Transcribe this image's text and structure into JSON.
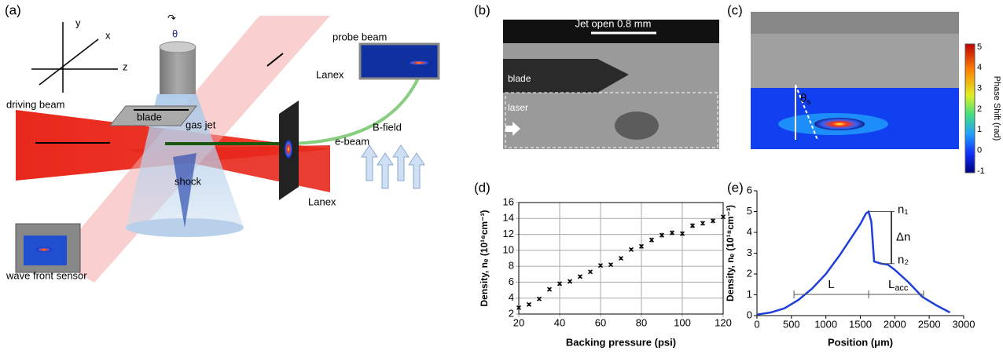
{
  "panels": {
    "a": {
      "label": "(a)",
      "axis_y": "y",
      "axis_x": "x",
      "axis_z": "z",
      "theta": "θ",
      "probe_beam": "probe beam",
      "driving_beam": "driving beam",
      "blade": "blade",
      "gas_jet": "gas jet",
      "lanex_top": "Lanex",
      "lanex": "Lanex",
      "b_field": "B-field",
      "e_beam": "e-beam",
      "shock": "shock",
      "sensor": "wave front sensor"
    },
    "b": {
      "label": "(b)",
      "scale": "Jet open 0.8 mm",
      "blade": "blade",
      "laser": "laser"
    },
    "c": {
      "label": "(c)",
      "theta": "θ",
      "theta_sub": "s",
      "colorbar_title": "Phase Shift (rad)",
      "colorbar_ticks": [
        "5",
        "4",
        "3",
        "2",
        "1",
        "0",
        "-1"
      ]
    }
  },
  "chart_data": [
    {
      "type": "scatter",
      "label": "(d)",
      "xlabel": "Backing pressure (psi)",
      "ylabel": "Density, nₑ (10¹⁸cm⁻³)",
      "x": [
        20,
        25,
        30,
        35,
        40,
        45,
        50,
        55,
        60,
        65,
        70,
        75,
        80,
        85,
        90,
        95,
        100,
        105,
        110,
        115,
        120
      ],
      "values": [
        2.8,
        3.2,
        3.9,
        5.1,
        5.8,
        6.1,
        6.7,
        7.3,
        8.1,
        8.2,
        9.0,
        10.1,
        10.5,
        11.3,
        11.9,
        12.2,
        12.1,
        13.1,
        13.4,
        13.7,
        14.2
      ],
      "errors": [
        0.2,
        0.2,
        0.2,
        0.2,
        0.2,
        0.2,
        0.2,
        0.2,
        0.2,
        0.2,
        0.2,
        0.2,
        0.3,
        0.3,
        0.3,
        0.3,
        0.3,
        0.3,
        0.3,
        0.3,
        0.3
      ],
      "xlim": [
        20,
        120
      ],
      "ylim": [
        2,
        16
      ],
      "xticks": [
        20,
        40,
        60,
        80,
        100,
        120
      ],
      "yticks": [
        2,
        4,
        6,
        8,
        10,
        12,
        14,
        16
      ],
      "grid": true,
      "color": "#000000"
    },
    {
      "type": "line",
      "label": "(e)",
      "xlabel": "Position (μm)",
      "ylabel": "Density, nₑ (10¹⁸cm⁻³)",
      "x": [
        0,
        200,
        400,
        600,
        800,
        1000,
        1200,
        1400,
        1500,
        1580,
        1620,
        1660,
        1700,
        1800,
        1900,
        2000,
        2200,
        2400,
        2600,
        2800
      ],
      "values": [
        0.05,
        0.15,
        0.35,
        0.75,
        1.3,
        2.0,
        2.9,
        3.9,
        4.4,
        4.9,
        5.0,
        4.5,
        2.6,
        2.5,
        2.45,
        2.2,
        1.6,
        0.9,
        0.5,
        0.15
      ],
      "xlim": [
        0,
        3000
      ],
      "ylim": [
        0,
        6
      ],
      "xticks": [
        0,
        500,
        1000,
        1500,
        2000,
        2500,
        3000
      ],
      "yticks": [
        0,
        1,
        2,
        3,
        4,
        5,
        6
      ],
      "grid": false,
      "color": "#1f3fd8",
      "annotations": {
        "n1": "n₁",
        "dn": "Δn",
        "n2": "n₂",
        "L": "L",
        "Lacc": "L",
        "Lacc_sub": "acc"
      }
    }
  ]
}
